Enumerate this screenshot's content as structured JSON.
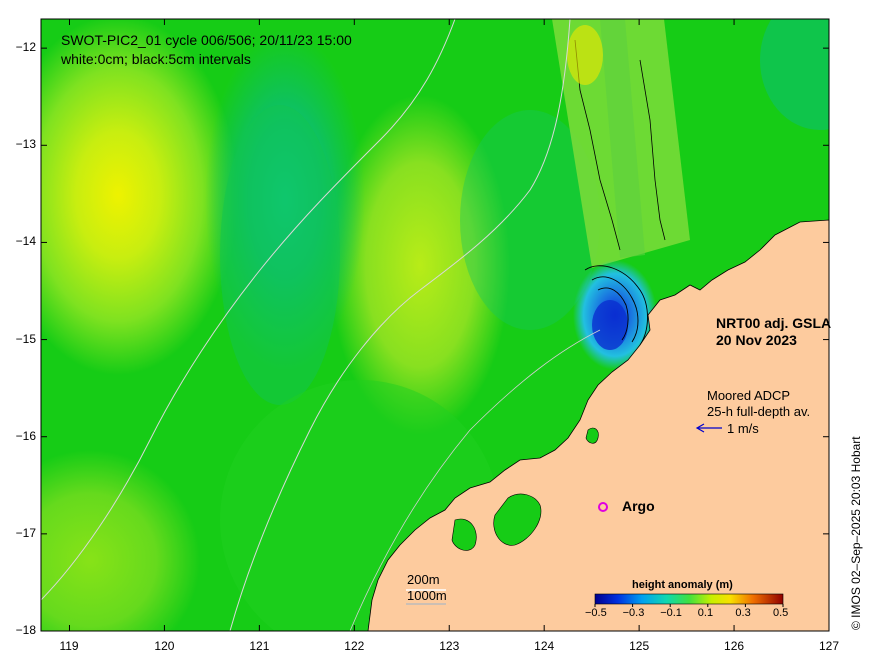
{
  "title": {
    "line1": "SWOT-PIC2_01 cycle 006/506; 20/11/23 15:00",
    "line2": "white:0cm; black:5cm intervals"
  },
  "product": {
    "line1": "NRT00 adj. GSLA",
    "line2": "20 Nov 2023"
  },
  "adcp": {
    "line1": "Moored ADCP",
    "line2": "25-h full-depth av.",
    "scale_label": "1 m/s"
  },
  "argo": {
    "marker": "o",
    "label": "Argo"
  },
  "contours": {
    "line1": "200m",
    "line2": "1000m"
  },
  "colorbar": {
    "title": "height anomaly (m)",
    "tick_labels": [
      "−0.5",
      "−0.3",
      "−0.1",
      "0.1",
      "0.3",
      "0.5"
    ],
    "range": [
      -0.5,
      0.5
    ]
  },
  "credit": "© IMOS 02–Sep–2025 20:03 Hobart",
  "axes": {
    "x_ticks": [
      "119",
      "120",
      "121",
      "122",
      "123",
      "124",
      "125",
      "126",
      "127"
    ],
    "y_ticks": [
      "−12",
      "−13",
      "−14",
      "−15",
      "−16",
      "−17",
      "−18"
    ],
    "xlim": [
      118.7,
      127
    ],
    "ylim": [
      -18,
      -11.7
    ]
  },
  "colors": {
    "land": "#fdcb9e",
    "ocean_base": "#16cc16",
    "high": "#e8f200",
    "low": "#0a3ad0",
    "argo": "#e000e0",
    "adcp_arrow": "#0000cc"
  }
}
